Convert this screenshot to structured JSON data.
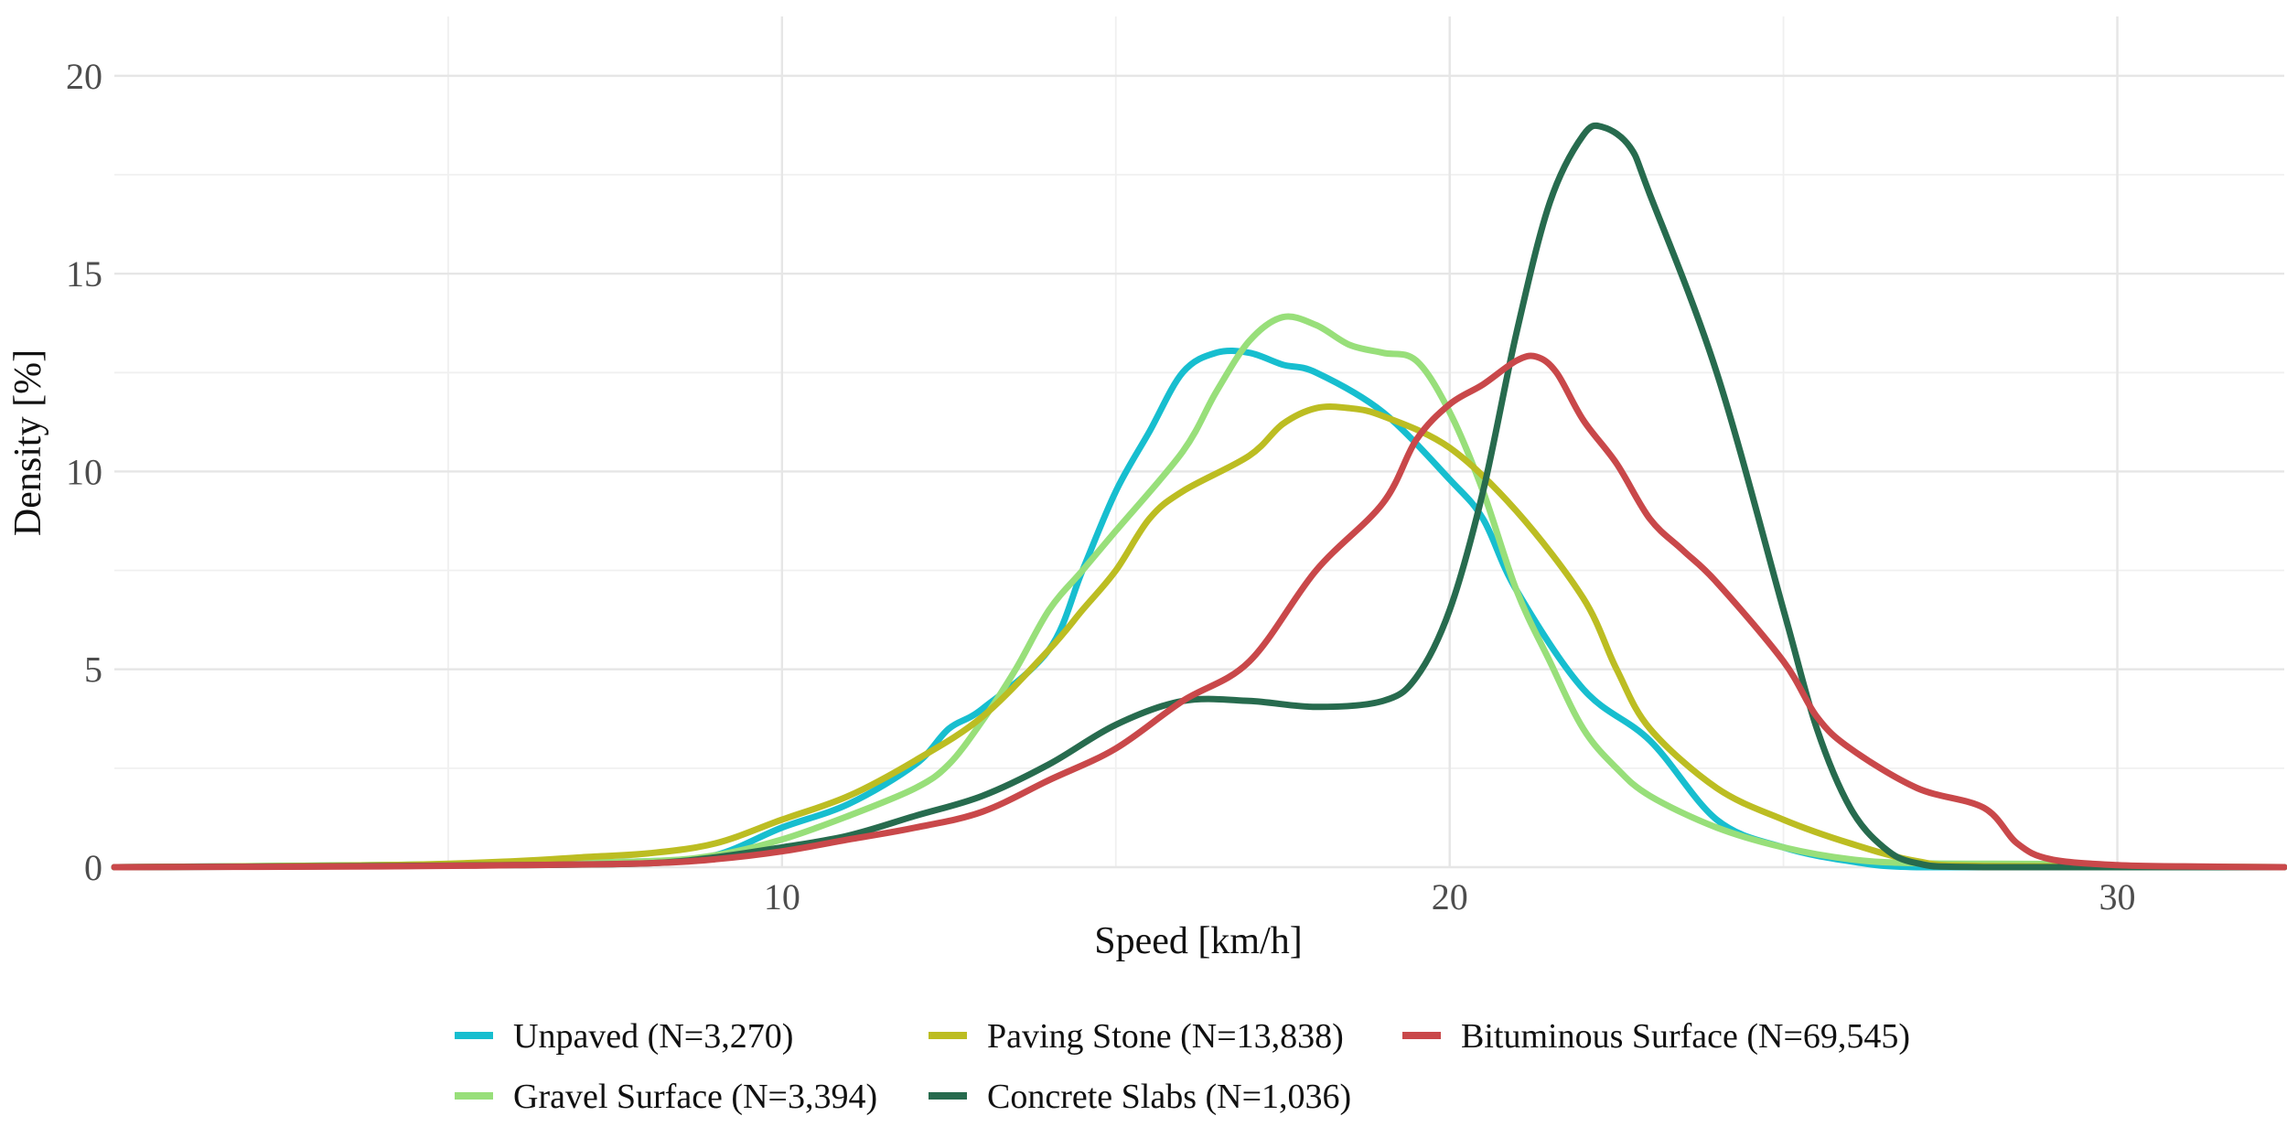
{
  "chart_data": {
    "type": "line",
    "title": "",
    "xlabel": "Speed [km/h]",
    "ylabel": "Density [%]",
    "xlim": [
      0,
      32.5
    ],
    "ylim": [
      0,
      21.5
    ],
    "x_major_ticks": [
      10,
      20,
      30
    ],
    "x_minor_ticks": [
      5,
      15,
      25
    ],
    "y_major_ticks": [
      0,
      5,
      10,
      15,
      20
    ],
    "y_minor_ticks": [
      2.5,
      7.5,
      12.5,
      17.5
    ],
    "x_tick_labels": [
      "10",
      "20",
      "30"
    ],
    "y_tick_labels": [
      "0",
      "5",
      "10",
      "15",
      "20"
    ],
    "grid": true,
    "legend_position": "bottom",
    "series": [
      {
        "name": "Unpaved (N=3,270)",
        "color": "#17becf",
        "points": [
          [
            0,
            0
          ],
          [
            4,
            0.05
          ],
          [
            6,
            0.1
          ],
          [
            8,
            0.15
          ],
          [
            9,
            0.3
          ],
          [
            10,
            1.0
          ],
          [
            11,
            1.6
          ],
          [
            12,
            2.6
          ],
          [
            12.5,
            3.5
          ],
          [
            13,
            4.0
          ],
          [
            14,
            5.5
          ],
          [
            14.5,
            7.5
          ],
          [
            15,
            9.5
          ],
          [
            15.5,
            11.0
          ],
          [
            16,
            12.5
          ],
          [
            16.5,
            13.0
          ],
          [
            17,
            13.0
          ],
          [
            17.5,
            12.7
          ],
          [
            18,
            12.5
          ],
          [
            19,
            11.5
          ],
          [
            20,
            9.8
          ],
          [
            20.5,
            8.8
          ],
          [
            21,
            7.0
          ],
          [
            22,
            4.5
          ],
          [
            23,
            3.2
          ],
          [
            24,
            1.2
          ],
          [
            25,
            0.5
          ],
          [
            26,
            0.15
          ],
          [
            27,
            0.0
          ],
          [
            30,
            0
          ],
          [
            32.5,
            0
          ]
        ]
      },
      {
        "name": "Gravel Surface (N=3,394)",
        "color": "#98df7a",
        "points": [
          [
            0,
            0
          ],
          [
            4,
            0.05
          ],
          [
            6,
            0.1
          ],
          [
            8,
            0.15
          ],
          [
            9,
            0.3
          ],
          [
            10,
            0.7
          ],
          [
            11,
            1.3
          ],
          [
            12,
            2.0
          ],
          [
            12.5,
            2.6
          ],
          [
            13,
            3.7
          ],
          [
            13.5,
            5.0
          ],
          [
            14,
            6.5
          ],
          [
            14.5,
            7.5
          ],
          [
            15,
            8.5
          ],
          [
            16,
            10.5
          ],
          [
            16.5,
            12.0
          ],
          [
            17,
            13.3
          ],
          [
            17.5,
            13.9
          ],
          [
            18,
            13.7
          ],
          [
            18.5,
            13.2
          ],
          [
            19,
            13.0
          ],
          [
            19.5,
            12.8
          ],
          [
            20,
            11.5
          ],
          [
            20.5,
            9.5
          ],
          [
            21,
            7.0
          ],
          [
            21.5,
            5.2
          ],
          [
            22,
            3.5
          ],
          [
            22.5,
            2.5
          ],
          [
            23,
            1.8
          ],
          [
            24,
            1.0
          ],
          [
            25,
            0.5
          ],
          [
            26,
            0.2
          ],
          [
            27,
            0.1
          ],
          [
            29,
            0.08
          ],
          [
            30,
            0.03
          ],
          [
            32.5,
            0
          ]
        ]
      },
      {
        "name": "Paving Stone (N=13,838)",
        "color": "#bcbd22",
        "points": [
          [
            0,
            0
          ],
          [
            4,
            0.05
          ],
          [
            6,
            0.15
          ],
          [
            7,
            0.25
          ],
          [
            8,
            0.35
          ],
          [
            9,
            0.6
          ],
          [
            10,
            1.2
          ],
          [
            11,
            1.8
          ],
          [
            12,
            2.7
          ],
          [
            13,
            3.8
          ],
          [
            14,
            5.5
          ],
          [
            14.5,
            6.5
          ],
          [
            15,
            7.5
          ],
          [
            15.5,
            8.8
          ],
          [
            16,
            9.5
          ],
          [
            17,
            10.4
          ],
          [
            17.5,
            11.2
          ],
          [
            18,
            11.6
          ],
          [
            18.5,
            11.6
          ],
          [
            19,
            11.4
          ],
          [
            20,
            10.6
          ],
          [
            21,
            9.0
          ],
          [
            22,
            6.8
          ],
          [
            22.5,
            5.0
          ],
          [
            23,
            3.5
          ],
          [
            24,
            2.0
          ],
          [
            25,
            1.2
          ],
          [
            26,
            0.6
          ],
          [
            27,
            0.15
          ],
          [
            28,
            0.03
          ],
          [
            32.5,
            0
          ]
        ]
      },
      {
        "name": "Concrete Slabs (N=1,036)",
        "color": "#276b4e",
        "points": [
          [
            0,
            0
          ],
          [
            3,
            0.02
          ],
          [
            6,
            0.05
          ],
          [
            8,
            0.1
          ],
          [
            9,
            0.25
          ],
          [
            10,
            0.5
          ],
          [
            11,
            0.8
          ],
          [
            12,
            1.3
          ],
          [
            13,
            1.8
          ],
          [
            14,
            2.6
          ],
          [
            15,
            3.6
          ],
          [
            16,
            4.2
          ],
          [
            17,
            4.2
          ],
          [
            18,
            4.05
          ],
          [
            19,
            4.2
          ],
          [
            19.5,
            4.8
          ],
          [
            20,
            6.5
          ],
          [
            20.5,
            9.5
          ],
          [
            21,
            13.5
          ],
          [
            21.5,
            16.8
          ],
          [
            22,
            18.5
          ],
          [
            22.3,
            18.7
          ],
          [
            22.7,
            18.2
          ],
          [
            23,
            17.0
          ],
          [
            24,
            12.5
          ],
          [
            25,
            6.5
          ],
          [
            25.5,
            3.5
          ],
          [
            26,
            1.5
          ],
          [
            26.5,
            0.5
          ],
          [
            27,
            0.1
          ],
          [
            28,
            0.0
          ],
          [
            32.5,
            0
          ]
        ]
      },
      {
        "name": "Bituminous Surface (N=69,545)",
        "color": "#c9484a",
        "points": [
          [
            0,
            0
          ],
          [
            4,
            0.02
          ],
          [
            6,
            0.05
          ],
          [
            8,
            0.1
          ],
          [
            9,
            0.2
          ],
          [
            10,
            0.4
          ],
          [
            11,
            0.7
          ],
          [
            12,
            1.0
          ],
          [
            13,
            1.4
          ],
          [
            14,
            2.2
          ],
          [
            15,
            3.0
          ],
          [
            16,
            4.2
          ],
          [
            17,
            5.2
          ],
          [
            18,
            7.5
          ],
          [
            19,
            9.2
          ],
          [
            19.5,
            10.8
          ],
          [
            20,
            11.7
          ],
          [
            20.5,
            12.2
          ],
          [
            21,
            12.8
          ],
          [
            21.3,
            12.9
          ],
          [
            21.6,
            12.5
          ],
          [
            22,
            11.3
          ],
          [
            22.5,
            10.2
          ],
          [
            23,
            8.8
          ],
          [
            23.5,
            8.0
          ],
          [
            24,
            7.2
          ],
          [
            25,
            5.2
          ],
          [
            25.5,
            3.8
          ],
          [
            26,
            3.0
          ],
          [
            27,
            2.0
          ],
          [
            28,
            1.5
          ],
          [
            28.5,
            0.6
          ],
          [
            29,
            0.2
          ],
          [
            30,
            0.05
          ],
          [
            31,
            0.02
          ],
          [
            32.5,
            0
          ]
        ]
      }
    ]
  }
}
